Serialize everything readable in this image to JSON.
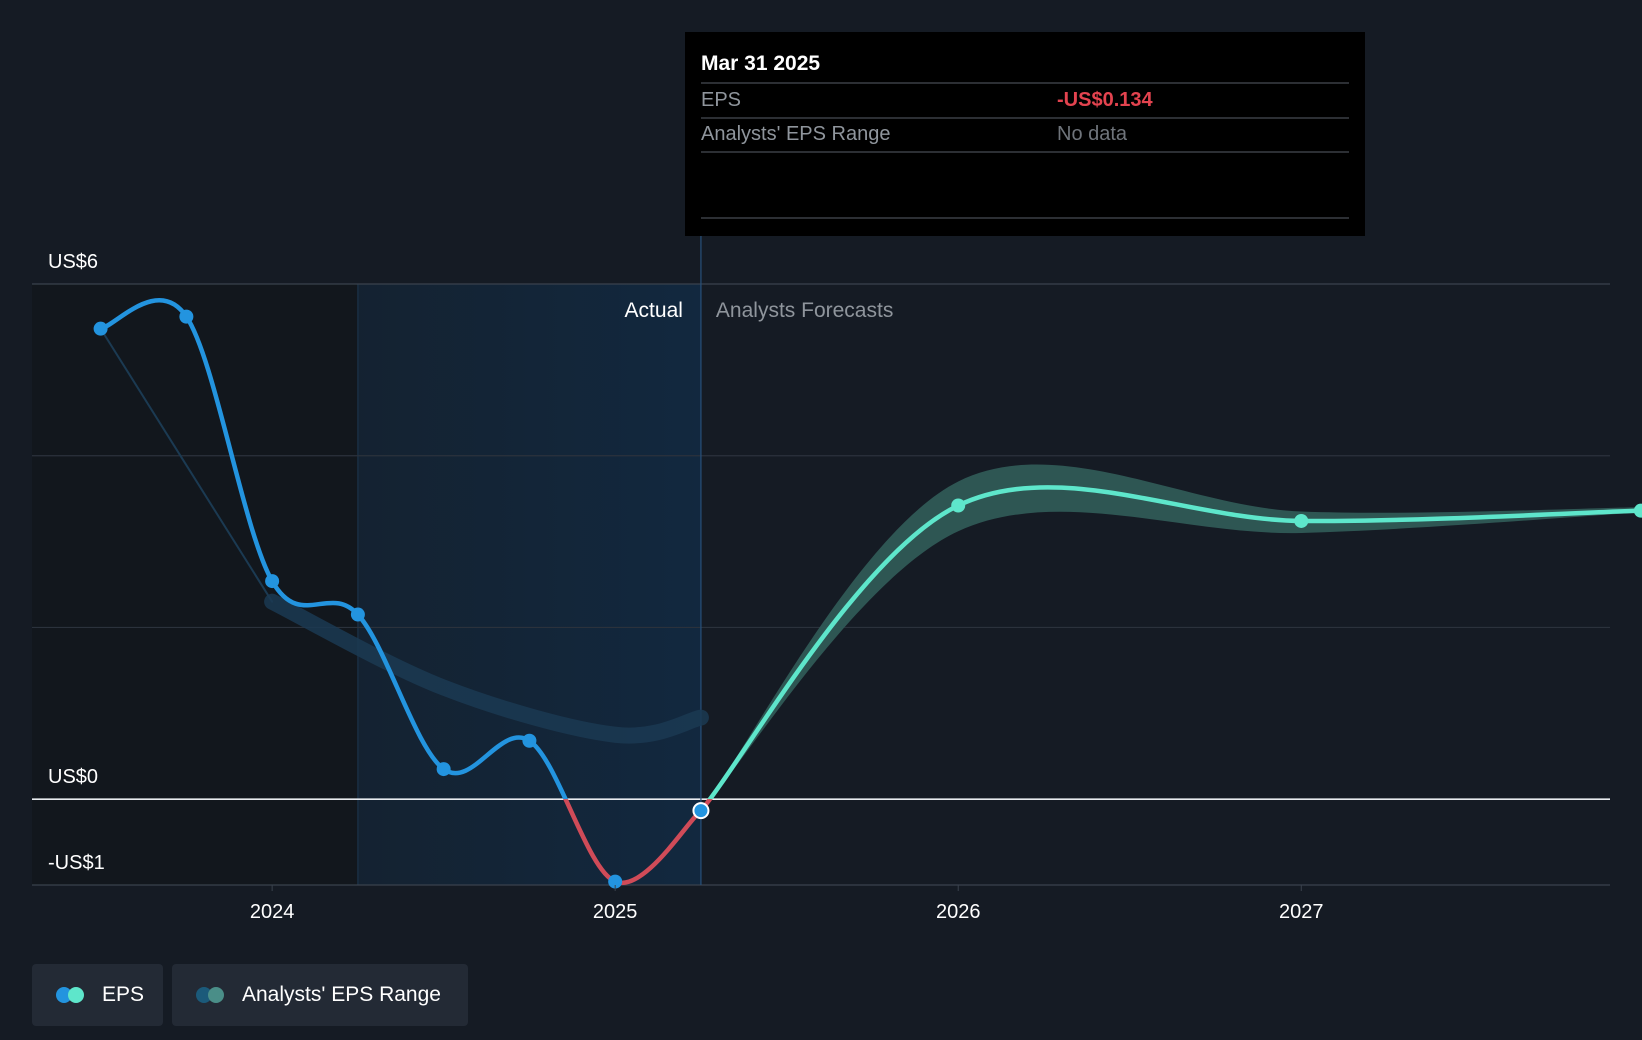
{
  "chart_data": {
    "type": "line",
    "y_ticks": [
      {
        "label": "US$6",
        "value": 6
      },
      {
        "label": "US$0",
        "value": 0
      },
      {
        "label": "-US$1",
        "value": -1
      }
    ],
    "gridlines": [
      6,
      4,
      2,
      0,
      -1
    ],
    "ylim": [
      -1,
      6
    ],
    "xlim": [
      2023.3,
      2027.9
    ],
    "x_ticks": [
      {
        "label": "2024",
        "value": 2024.0
      },
      {
        "label": "2025",
        "value": 2025.0
      },
      {
        "label": "2026",
        "value": 2026.0
      },
      {
        "label": "2027",
        "value": 2027.0
      }
    ],
    "past_start": 2024.25,
    "divider_x": 2025.25,
    "section_labels": {
      "actual": "Actual",
      "forecast": "Analysts Forecasts"
    },
    "series": [
      {
        "name": "EPS",
        "kind": "actual",
        "points": [
          [
            2023.5,
            5.48
          ],
          [
            2023.75,
            5.62
          ],
          [
            2024.0,
            2.54
          ],
          [
            2024.25,
            2.15
          ],
          [
            2024.5,
            0.35
          ],
          [
            2024.75,
            0.68
          ],
          [
            2025.0,
            -0.96
          ],
          [
            2025.25,
            -0.134
          ]
        ]
      },
      {
        "name": "EPS",
        "kind": "forecast",
        "points": [
          [
            2025.25,
            -0.134
          ],
          [
            2026.0,
            3.42
          ],
          [
            2027.0,
            3.24
          ],
          [
            2027.99,
            3.36
          ]
        ]
      },
      {
        "name": "Analysts' EPS Range",
        "kind": "range",
        "points": [
          [
            2025.25,
            -0.134,
            -0.134
          ],
          [
            2026.0,
            3.7,
            3.12
          ],
          [
            2027.0,
            3.35,
            3.1
          ],
          [
            2027.99,
            3.4,
            3.34
          ]
        ]
      },
      {
        "name": "Past EPS trend",
        "kind": "trend",
        "points": [
          [
            2023.5,
            5.48
          ],
          [
            2024.0,
            2.3
          ],
          [
            2024.5,
            1.3
          ],
          [
            2025.0,
            0.75
          ],
          [
            2025.25,
            0.95
          ]
        ]
      }
    ],
    "tooltip": {
      "date": "Mar 31 2025",
      "rows": [
        {
          "label": "EPS",
          "value": "-US$0.134",
          "value_color": "#e3434f"
        },
        {
          "label": "Analysts' EPS Range",
          "value": "No data",
          "value_color": "#6f747b"
        }
      ]
    },
    "colors": {
      "actual": "#2394df",
      "negative": "#d04b58",
      "forecast": "#5ee6cb",
      "range_fill": "#2f5a56",
      "trend": "#1b3a52",
      "highlight_fill": "#112338",
      "past_fill": "#12171d",
      "grid": "#2b323c"
    }
  },
  "legend": [
    {
      "label": "EPS",
      "colors": [
        "#2394df",
        "#5ee6cb"
      ]
    },
    {
      "label": "Analysts' EPS Range",
      "colors": [
        "#1b5a7a",
        "#4a8e88"
      ]
    }
  ]
}
